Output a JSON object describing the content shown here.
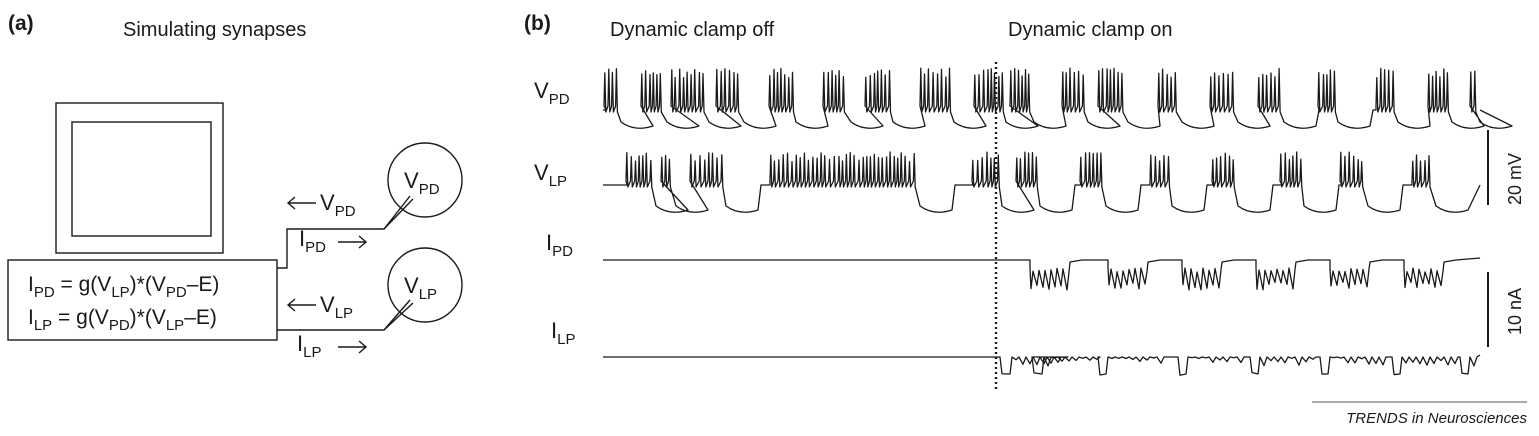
{
  "panel_a": {
    "label": "(a)",
    "title": "Simulating synapses",
    "equations": [
      {
        "parts": [
          "I",
          "PD",
          " = g(V",
          "LP",
          ")*(V",
          "PD",
          "–E)"
        ]
      },
      {
        "parts": [
          "I",
          "LP",
          " = g(V",
          "PD",
          ")*(V",
          "LP",
          "–E)"
        ]
      }
    ],
    "neurons": [
      {
        "main": "V",
        "sub": "PD"
      },
      {
        "main": "V",
        "sub": "LP"
      }
    ],
    "arrows": [
      {
        "main": "V",
        "sub": "PD",
        "direction": "left"
      },
      {
        "main": "I",
        "sub": "PD",
        "direction": "right"
      },
      {
        "main": "V",
        "sub": "LP",
        "direction": "left"
      },
      {
        "main": "I",
        "sub": "LP",
        "direction": "right"
      }
    ]
  },
  "panel_b": {
    "label": "(b)",
    "off_title": "Dynamic clamp off",
    "on_title": "Dynamic clamp on",
    "traces": [
      {
        "main": "V",
        "sub": "PD"
      },
      {
        "main": "V",
        "sub": "LP"
      },
      {
        "main": "I",
        "sub": "PD"
      },
      {
        "main": "I",
        "sub": "LP"
      }
    ],
    "scale_voltage": "20 mV",
    "scale_current": "10 nA"
  },
  "credit": "TRENDS in Neurosciences"
}
